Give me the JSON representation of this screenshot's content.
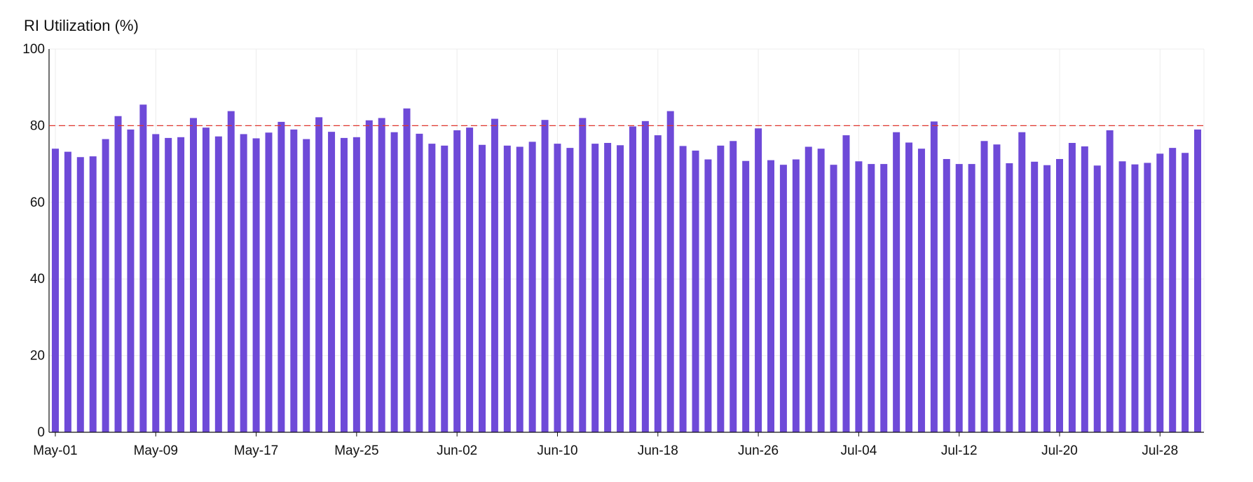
{
  "chart_data": {
    "type": "bar",
    "title": "RI Utilization (%)",
    "xlabel": "",
    "ylabel": "",
    "ylim": [
      0,
      100
    ],
    "yticks": [
      0,
      20,
      40,
      60,
      80,
      100
    ],
    "xtick_labels": [
      "May-01",
      "May-09",
      "May-17",
      "May-25",
      "Jun-02",
      "Jun-10",
      "Jun-18",
      "Jun-26",
      "Jul-04",
      "Jul-12",
      "Jul-20",
      "Jul-28"
    ],
    "start_label": "May-01",
    "grid": true,
    "reference_line": {
      "value": 80,
      "style": "dashed",
      "color": "#e0342c"
    },
    "bar_color": "#6e4ad8",
    "values": [
      74.0,
      73.2,
      71.8,
      72.0,
      76.5,
      82.5,
      79.0,
      85.5,
      77.8,
      76.8,
      77.0,
      82.0,
      79.5,
      77.2,
      83.8,
      77.8,
      76.7,
      78.2,
      81.0,
      79.0,
      76.5,
      82.2,
      78.4,
      76.8,
      77.0,
      81.4,
      82.0,
      78.3,
      84.5,
      77.9,
      75.3,
      74.8,
      78.8,
      79.5,
      75.0,
      81.8,
      74.8,
      74.5,
      75.8,
      81.5,
      75.3,
      74.2,
      82.0,
      75.3,
      75.5,
      74.9,
      79.8,
      81.2,
      77.5,
      83.8,
      74.7,
      73.5,
      71.2,
      74.8,
      76.0,
      70.8,
      79.3,
      71.0,
      69.8,
      71.2,
      74.5,
      74.0,
      69.8,
      77.5,
      70.7,
      70.0,
      70.0,
      78.3,
      75.6,
      74.0,
      81.1,
      71.3,
      70.0,
      70.0,
      76.0,
      75.1,
      70.2,
      78.3,
      70.6,
      69.7,
      71.3,
      75.5,
      74.6,
      69.6,
      78.8,
      70.7,
      69.9,
      70.3,
      72.7,
      74.2,
      72.9,
      79.0
    ]
  }
}
